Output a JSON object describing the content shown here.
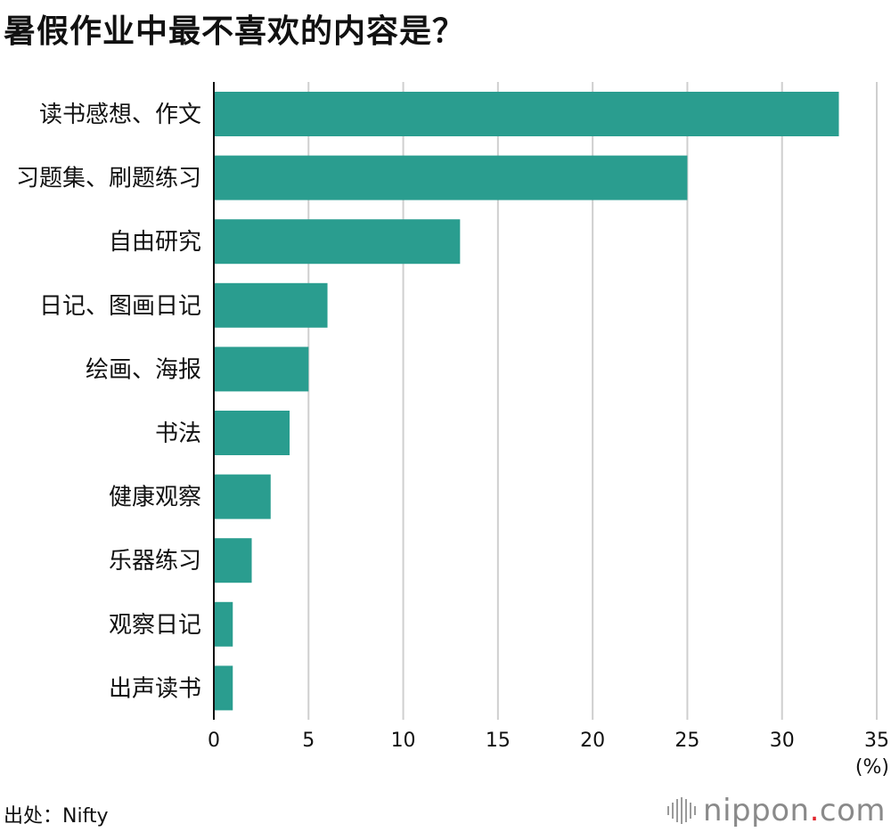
{
  "title": "暑假作业中最不喜欢的内容是？",
  "source": "出处：Nifty",
  "logo": {
    "name": "nippon",
    "dot": ".",
    "suffix": "com",
    "icon": "nippon-logo-bars-icon"
  },
  "chart_data": {
    "type": "bar",
    "orientation": "horizontal",
    "categories": [
      "读书感想、作文",
      "习题集、刷题练习",
      "自由研究",
      "日记、图画日记",
      "绘画、海报",
      "书法",
      "健康观察",
      "乐器练习",
      "观察日记",
      "出声读书"
    ],
    "values": [
      33,
      25,
      13,
      6,
      5,
      4,
      3,
      2,
      1,
      1
    ],
    "xlim": [
      0,
      35
    ],
    "xticks": [
      "0",
      "5",
      "10",
      "15",
      "20",
      "25",
      "30",
      "35"
    ],
    "unit_label": "(%)",
    "grid": true,
    "bar_color": "#2a9d8f"
  }
}
